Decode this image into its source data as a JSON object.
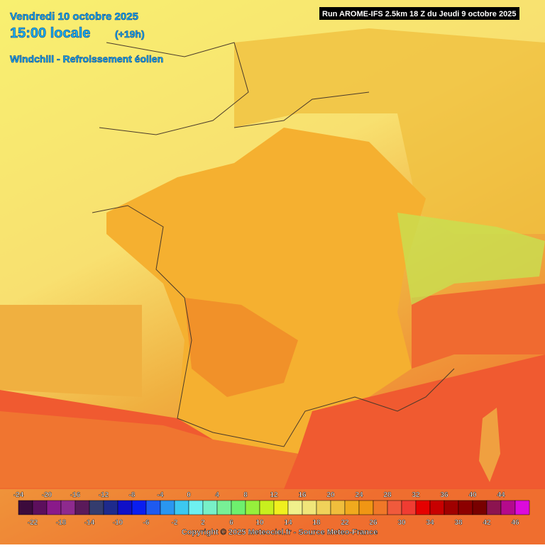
{
  "header": {
    "date": "Vendredi 10 octobre 2025",
    "time": "15:00 locale",
    "lead": "(+19h)",
    "parameter": "Windchill - Refroissement éolien",
    "run": "Run AROME-IFS 2.5km 18 Z du Jeudi 9 octobre 2025"
  },
  "legend": {
    "top_labels": [
      -24,
      -20,
      -16,
      -12,
      -8,
      -4,
      0,
      4,
      8,
      12,
      16,
      20,
      24,
      28,
      32,
      36,
      40,
      44
    ],
    "bottom_labels": [
      -22,
      -18,
      -14,
      -10,
      -6,
      -2,
      2,
      6,
      10,
      14,
      18,
      22,
      26,
      30,
      34,
      38,
      42,
      46
    ],
    "colors": [
      "#3c0b3c",
      "#5c0f5c",
      "#8a1a8a",
      "#8e2a8e",
      "#5a1a5a",
      "#343c6e",
      "#1e2a8c",
      "#1010c8",
      "#0a1ef0",
      "#1e5af0",
      "#2a96f0",
      "#3cc8f0",
      "#6ef0f0",
      "#78f0c8",
      "#78f096",
      "#6ef06e",
      "#96f03c",
      "#c8f01e",
      "#f0f01e",
      "#f0f08c",
      "#f0e67a",
      "#f0d25a",
      "#f0be3c",
      "#f0aa1e",
      "#f09614",
      "#f07828",
      "#f05a3c",
      "#f03c32",
      "#e60000",
      "#c80000",
      "#a00000",
      "#8c0000",
      "#780000",
      "#8c1450",
      "#b40a8c",
      "#dc0adc"
    ]
  },
  "footer": {
    "copyright": "Copyright © 2025 Meteociel.fr - Source Meteo-France"
  }
}
